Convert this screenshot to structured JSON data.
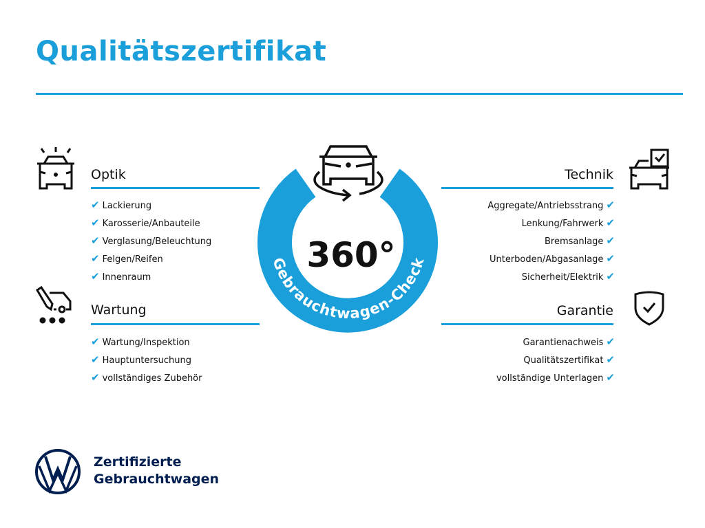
{
  "title": "Qualitätszertifikat",
  "colors": {
    "accent": "#1a9fdb",
    "brand_navy": "#001e50"
  },
  "center": {
    "big_text": "360°",
    "ring_text": "Gebrauchtwagen-Check",
    "icon": "car-rotate-icon"
  },
  "sections": {
    "optik": {
      "title": "Optik",
      "icon": "car-lights-icon",
      "items": [
        "Lackierung",
        "Karosserie/Anbauteile",
        "Verglasung/Beleuchtung",
        "Felgen/Reifen",
        "Innenraum"
      ]
    },
    "wartung": {
      "title": "Wartung",
      "icon": "service-van-icon",
      "items": [
        "Wartung/Inspektion",
        "Hauptuntersuchung",
        "vollständiges Zubehör"
      ]
    },
    "technik": {
      "title": "Technik",
      "icon": "car-checkbox-icon",
      "items": [
        "Aggregate/Antriebsstrang",
        "Lenkung/Fahrwerk",
        "Bremsanlage",
        "Unterboden/Abgasanlage",
        "Sicherheit/Elektrik"
      ]
    },
    "garantie": {
      "title": "Garantie",
      "icon": "shield-check-icon",
      "items": [
        "Garantienachweis",
        "Qualitätszertifikat",
        "vollständige Unterlagen"
      ]
    }
  },
  "check_glyph": "✔",
  "footer": {
    "line1": "Zertifizierte",
    "line2": "Gebrauchtwagen",
    "logo": "vw-logo"
  }
}
